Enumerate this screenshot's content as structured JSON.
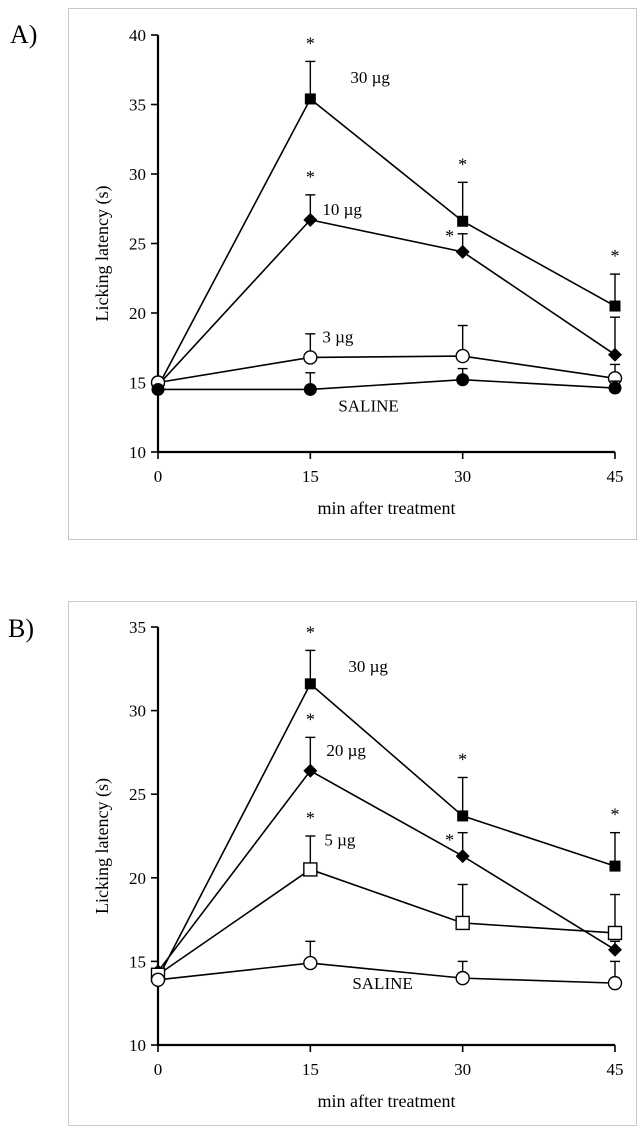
{
  "chart_data": [
    {
      "panel": "A)",
      "type": "line",
      "xlabel": "min after treatment",
      "ylabel": "Licking latency (s)",
      "x": [
        0,
        15,
        30,
        45
      ],
      "xlim": [
        0,
        45
      ],
      "ylim": [
        10,
        40
      ],
      "xticks": [
        "0",
        "15",
        "30",
        "45"
      ],
      "yticks": [
        "10",
        "15",
        "20",
        "25",
        "30",
        "35",
        "40"
      ],
      "grid": false,
      "series": [
        {
          "name": "30 µg",
          "marker": "square-filled",
          "values": [
            14.7,
            35.4,
            26.6,
            20.5
          ],
          "errors": [
            0,
            2.7,
            2.8,
            2.3
          ],
          "sig": [
            false,
            true,
            true,
            true
          ]
        },
        {
          "name": "10 µg",
          "marker": "diamond-filled",
          "values": [
            14.8,
            26.7,
            24.4,
            17.0
          ],
          "errors": [
            0,
            1.8,
            1.3,
            2.7
          ],
          "sig": [
            false,
            true,
            true,
            false
          ]
        },
        {
          "name": "3 µg",
          "marker": "circle-open",
          "values": [
            15.0,
            16.8,
            16.9,
            15.3
          ],
          "errors": [
            0,
            1.7,
            2.2,
            1.0
          ],
          "sig": [
            false,
            false,
            false,
            false
          ]
        },
        {
          "name": "SALINE",
          "marker": "circle-filled",
          "values": [
            14.5,
            14.5,
            15.2,
            14.6
          ],
          "errors": [
            0,
            1.2,
            0.8,
            0.5
          ],
          "sig": [
            false,
            false,
            false,
            false
          ]
        }
      ],
      "significance_marker": "*"
    },
    {
      "panel": "B)",
      "type": "line",
      "xlabel": "min after treatment",
      "ylabel": "Licking latency (s)",
      "x": [
        0,
        15,
        30,
        45
      ],
      "xlim": [
        0,
        45
      ],
      "ylim": [
        10,
        35
      ],
      "xticks": [
        "0",
        "15",
        "30",
        "45"
      ],
      "yticks": [
        "10",
        "15",
        "20",
        "25",
        "30",
        "35"
      ],
      "grid": false,
      "series": [
        {
          "name": "30 µg",
          "marker": "square-filled",
          "values": [
            14.0,
            31.6,
            23.7,
            20.7
          ],
          "errors": [
            0,
            2.0,
            2.3,
            2.0
          ],
          "sig": [
            false,
            true,
            true,
            true
          ]
        },
        {
          "name": "20 µg",
          "marker": "diamond-filled",
          "values": [
            14.4,
            26.4,
            21.3,
            15.7
          ],
          "errors": [
            0,
            2.0,
            1.4,
            0.5
          ],
          "sig": [
            false,
            true,
            true,
            false
          ]
        },
        {
          "name": "5 µg",
          "marker": "square-open",
          "values": [
            14.2,
            20.5,
            17.3,
            16.7
          ],
          "errors": [
            0,
            2.0,
            2.3,
            2.3
          ],
          "sig": [
            false,
            true,
            false,
            false
          ]
        },
        {
          "name": "SALINE",
          "marker": "circle-open",
          "values": [
            13.9,
            14.9,
            14.0,
            13.7
          ],
          "errors": [
            0,
            1.3,
            1.0,
            1.3
          ],
          "sig": [
            false,
            false,
            false,
            false
          ]
        }
      ],
      "significance_marker": "*"
    }
  ]
}
